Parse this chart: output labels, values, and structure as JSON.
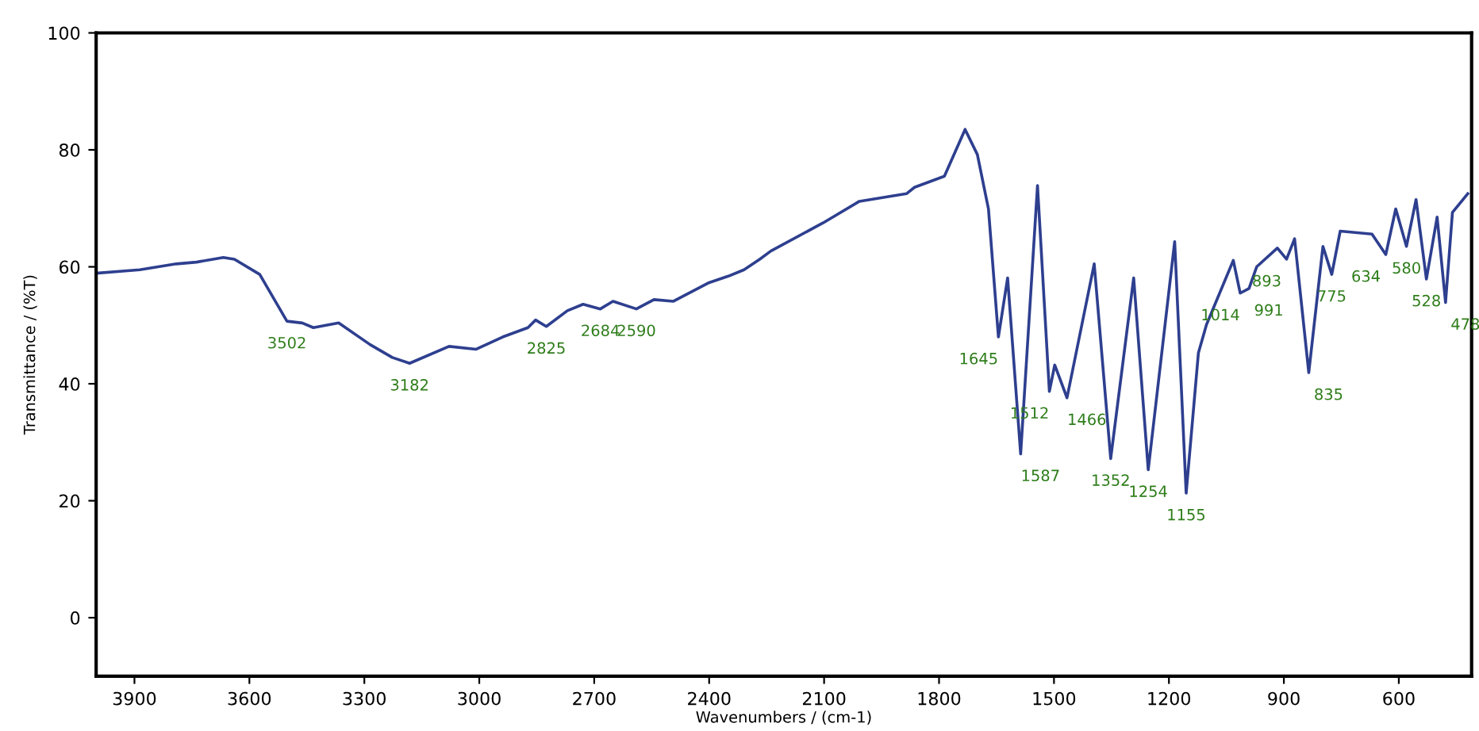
{
  "chart_data": {
    "type": "line",
    "xlabel": "Wavenumbers / (cm-1)",
    "ylabel": "Transmittance / (%T)",
    "xlim": [
      4000,
      410
    ],
    "ylim": [
      -10,
      100
    ],
    "xticks": [
      3900,
      3600,
      3300,
      3000,
      2700,
      2400,
      2100,
      1800,
      1500,
      1200,
      900,
      600
    ],
    "yticks": [
      0,
      20,
      40,
      60,
      80,
      100
    ],
    "grid": false,
    "marker": "none",
    "line_style": "solid",
    "series": [
      {
        "color": "#2e3f8f",
        "x": [
          4000,
          3886,
          3791,
          3738,
          3668,
          3639,
          3573,
          3502,
          3462,
          3433,
          3367,
          3285,
          3227,
          3182,
          3079,
          3009,
          2939,
          2873,
          2853,
          2825,
          2770,
          2729,
          2684,
          2651,
          2590,
          2544,
          2494,
          2400,
          2350,
          2309,
          2268,
          2239,
          2103,
          2008,
          1885,
          1864,
          1786,
          1732,
          1700,
          1671,
          1645,
          1621,
          1587,
          1543,
          1512,
          1498,
          1466,
          1395,
          1352,
          1292,
          1254,
          1185,
          1155,
          1123,
          1102,
          1032,
          1014,
          991,
          971,
          917,
          893,
          872,
          835,
          798,
          775,
          753,
          670,
          634,
          608,
          580,
          555,
          528,
          500,
          478,
          460,
          420
        ],
        "values": [
          58.9,
          59.5,
          60.5,
          60.8,
          61.6,
          61.3,
          58.7,
          50.7,
          50.4,
          49.6,
          50.4,
          46.7,
          44.5,
          43.5,
          46.4,
          45.9,
          48,
          49.6,
          50.9,
          49.8,
          52.5,
          53.6,
          52.8,
          54.1,
          52.8,
          54.4,
          54.1,
          57.3,
          58.4,
          59.5,
          61.3,
          62.7,
          67.5,
          71.2,
          72.5,
          73.6,
          75.5,
          83.5,
          79.2,
          69.9,
          48,
          58.1,
          28,
          73.9,
          38.7,
          43.2,
          37.6,
          60.5,
          27.2,
          58.1,
          25.3,
          64.3,
          21.3,
          45.3,
          50.1,
          61.1,
          55.5,
          56.3,
          60,
          63.2,
          61.3,
          64.8,
          41.9,
          63.5,
          58.7,
          66.1,
          65.6,
          62.1,
          69.9,
          63.5,
          71.5,
          57.9,
          68.5,
          53.9,
          69.3,
          72.5
        ]
      }
    ],
    "annotations": [
      {
        "text": "3502",
        "x": 3502,
        "y": 50.7
      },
      {
        "text": "3182",
        "x": 3182,
        "y": 43.5
      },
      {
        "text": "2825",
        "x": 2825,
        "y": 49.8
      },
      {
        "text": "2684",
        "x": 2684,
        "y": 52.8
      },
      {
        "text": "2590",
        "x": 2590,
        "y": 52.8
      },
      {
        "text": "1645",
        "x": 1645,
        "y": 48
      },
      {
        "text": "1587",
        "x": 1587,
        "y": 28
      },
      {
        "text": "1512",
        "x": 1512,
        "y": 38.7
      },
      {
        "text": "1466",
        "x": 1466,
        "y": 37.6
      },
      {
        "text": "1352",
        "x": 1352,
        "y": 27.2
      },
      {
        "text": "1254",
        "x": 1254,
        "y": 25.3
      },
      {
        "text": "1155",
        "x": 1155,
        "y": 21.3
      },
      {
        "text": "1014",
        "x": 1014,
        "y": 55.5
      },
      {
        "text": "991",
        "x": 991,
        "y": 56.3
      },
      {
        "text": "893",
        "x": 893,
        "y": 61.3
      },
      {
        "text": "835",
        "x": 835,
        "y": 41.9
      },
      {
        "text": "775",
        "x": 775,
        "y": 58.7
      },
      {
        "text": "634",
        "x": 634,
        "y": 62.1
      },
      {
        "text": "580",
        "x": 580,
        "y": 63.5
      },
      {
        "text": "528",
        "x": 528,
        "y": 57.9
      },
      {
        "text": "478",
        "x": 478,
        "y": 53.9
      }
    ]
  }
}
